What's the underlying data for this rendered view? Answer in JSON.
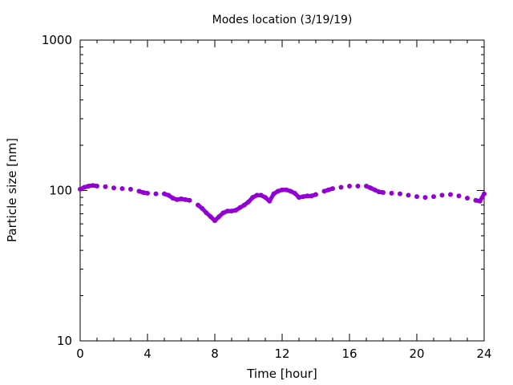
{
  "chart_data": {
    "type": "scatter",
    "title": "Modes location (3/19/19)",
    "xlabel": "Time [hour]",
    "ylabel": "Particle size [nm]",
    "xlim": [
      0,
      24
    ],
    "ylim": [
      10,
      1000
    ],
    "y_scale": "log",
    "grid": false,
    "marker_color": "#9400d3",
    "x_ticks": [
      {
        "value": 0,
        "label": "0"
      },
      {
        "value": 4,
        "label": "4"
      },
      {
        "value": 8,
        "label": "8"
      },
      {
        "value": 12,
        "label": "12"
      },
      {
        "value": 16,
        "label": "16"
      },
      {
        "value": 20,
        "label": "20"
      },
      {
        "value": 24,
        "label": "24"
      }
    ],
    "y_ticks": [
      {
        "value": 10,
        "label": "10"
      },
      {
        "value": 100,
        "label": "100"
      },
      {
        "value": 1000,
        "label": "1000"
      }
    ],
    "series": [
      {
        "x": [
          0.0,
          0.25,
          0.5,
          0.75,
          1.0,
          1.5,
          2.0,
          2.5,
          3.0,
          3.5,
          3.75,
          4.0,
          4.5,
          5.0,
          5.25,
          5.5,
          5.75,
          6.0,
          6.25,
          6.5,
          7.0,
          7.25,
          7.5,
          7.75,
          8.0,
          8.25,
          8.5,
          8.75,
          9.0,
          9.25,
          9.5,
          9.75,
          10.0,
          10.25,
          10.5,
          10.75,
          11.0,
          11.25,
          11.5,
          11.75,
          12.0,
          12.25,
          12.5,
          12.75,
          13.0,
          13.25,
          13.5,
          13.75,
          14.0,
          14.5,
          14.75,
          15.0,
          15.5,
          16.0,
          16.5,
          17.0,
          17.25,
          17.5,
          17.75,
          18.0,
          18.5,
          19.0,
          19.5,
          20.0,
          20.5,
          21.0,
          21.5,
          22.0,
          22.5,
          23.0,
          23.5,
          23.75,
          24.0
        ],
        "y": [
          102,
          105,
          107,
          108,
          107,
          106,
          104,
          103,
          102,
          99,
          97,
          96,
          95,
          95,
          93,
          89,
          87,
          88,
          87,
          86,
          80,
          76,
          71,
          67,
          63,
          67,
          71,
          73,
          73,
          74,
          77,
          80,
          84,
          90,
          93,
          93,
          90,
          85,
          95,
          99,
          101,
          101,
          99,
          96,
          90,
          91,
          92,
          92,
          94,
          99,
          101,
          103,
          105,
          107,
          107,
          107,
          104,
          101,
          98,
          97,
          96,
          95,
          93,
          91,
          90,
          91,
          93,
          94,
          92,
          89,
          86,
          85,
          95
        ]
      }
    ]
  }
}
